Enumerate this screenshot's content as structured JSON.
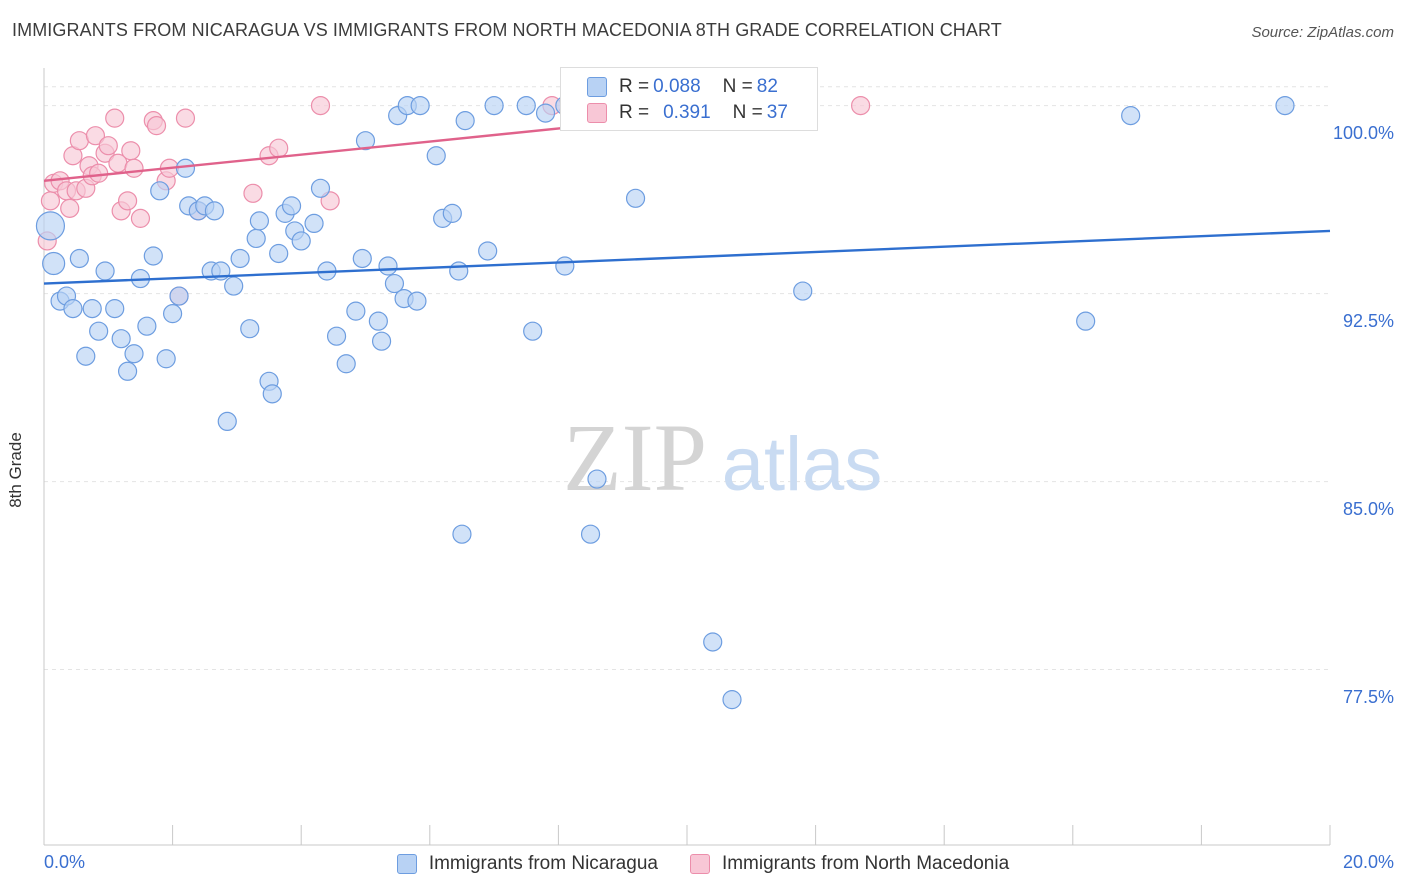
{
  "title": "IMMIGRANTS FROM NICARAGUA VS IMMIGRANTS FROM NORTH MACEDONIA 8TH GRADE CORRELATION CHART",
  "source": "Source: ZipAtlas.com",
  "watermark": {
    "zip": "ZIP",
    "atlas": "atlas"
  },
  "colors": {
    "blue_fill": "#b8d2f4",
    "blue_stroke": "#6d9de0",
    "blue_line": "#2e6fcf",
    "pink_fill": "#f8c7d6",
    "pink_stroke": "#ec8eab",
    "pink_line": "#e0628b",
    "axis_text": "#3a6fd0",
    "grid": "#e4e4e4"
  },
  "legend": {
    "rows": [
      {
        "r_label": "R =",
        "r_value": "0.088",
        "n_label": "N =",
        "n_value": "82"
      },
      {
        "r_label": "R =",
        "r_value": "0.391",
        "n_label": "N =",
        "n_value": "37"
      }
    ]
  },
  "bottom_legend": {
    "series1": "Immigrants from Nicaragua",
    "series2": "Immigrants from North Macedonia"
  },
  "x_axis": {
    "min_label": "0.0%",
    "max_label": "20.0%"
  },
  "y_ticks": [
    "100.0%",
    "92.5%",
    "85.0%",
    "77.5%"
  ],
  "chart_data": {
    "type": "scatter",
    "title": "IMMIGRANTS FROM NICARAGUA VS IMMIGRANTS FROM NORTH MACEDONIA 8TH GRADE CORRELATION CHART",
    "xlabel": "",
    "ylabel": "8th Grade",
    "xlim": [
      0,
      20
    ],
    "ylim": [
      70.5,
      101.5
    ],
    "y_ticks": [
      77.5,
      85.0,
      92.5,
      100.0
    ],
    "grid": true,
    "legend_position": "top-center",
    "series": [
      {
        "name": "Immigrants from Nicaragua",
        "trend": {
          "x": [
            0,
            20
          ],
          "y": [
            92.9,
            95.0
          ]
        },
        "points": [
          [
            0.1,
            95.2
          ],
          [
            0.15,
            93.7
          ],
          [
            0.25,
            92.2
          ],
          [
            0.35,
            92.4
          ],
          [
            0.45,
            91.9
          ],
          [
            0.55,
            93.9
          ],
          [
            0.65,
            90.0
          ],
          [
            0.75,
            91.9
          ],
          [
            0.85,
            91.0
          ],
          [
            0.95,
            93.4
          ],
          [
            1.1,
            91.9
          ],
          [
            1.2,
            90.7
          ],
          [
            1.3,
            89.4
          ],
          [
            1.4,
            90.1
          ],
          [
            1.5,
            93.1
          ],
          [
            1.6,
            91.2
          ],
          [
            1.7,
            94.0
          ],
          [
            1.8,
            96.6
          ],
          [
            1.9,
            89.9
          ],
          [
            2.0,
            91.7
          ],
          [
            2.1,
            92.4
          ],
          [
            2.2,
            97.5
          ],
          [
            2.25,
            96.0
          ],
          [
            2.4,
            95.8
          ],
          [
            2.5,
            96.0
          ],
          [
            2.6,
            93.4
          ],
          [
            2.65,
            95.8
          ],
          [
            2.75,
            93.4
          ],
          [
            2.85,
            87.4
          ],
          [
            2.95,
            92.8
          ],
          [
            3.05,
            93.9
          ],
          [
            3.2,
            91.1
          ],
          [
            3.3,
            94.7
          ],
          [
            3.35,
            95.4
          ],
          [
            3.5,
            89.0
          ],
          [
            3.55,
            88.5
          ],
          [
            3.65,
            94.1
          ],
          [
            3.75,
            95.7
          ],
          [
            3.85,
            96.0
          ],
          [
            3.9,
            95.0
          ],
          [
            4.0,
            94.6
          ],
          [
            4.2,
            95.3
          ],
          [
            4.3,
            96.7
          ],
          [
            4.4,
            93.4
          ],
          [
            4.55,
            90.8
          ],
          [
            4.7,
            89.7
          ],
          [
            4.85,
            91.8
          ],
          [
            4.95,
            93.9
          ],
          [
            5.2,
            91.4
          ],
          [
            5.25,
            90.6
          ],
          [
            5.35,
            93.6
          ],
          [
            5.45,
            92.9
          ],
          [
            5.6,
            92.3
          ],
          [
            5.8,
            92.2
          ],
          [
            5.5,
            99.6
          ],
          [
            5.65,
            100.0
          ],
          [
            5.85,
            100.0
          ],
          [
            6.1,
            98.0
          ],
          [
            6.2,
            95.5
          ],
          [
            6.35,
            95.7
          ],
          [
            6.45,
            93.4
          ],
          [
            6.55,
            99.4
          ],
          [
            6.5,
            82.9
          ],
          [
            6.9,
            94.2
          ],
          [
            7.0,
            100.0
          ],
          [
            7.5,
            100.0
          ],
          [
            7.8,
            99.7
          ],
          [
            7.6,
            91.0
          ],
          [
            8.1,
            100.0
          ],
          [
            8.6,
            85.1
          ],
          [
            8.5,
            82.9
          ],
          [
            8.1,
            93.6
          ],
          [
            9.1,
            100.0
          ],
          [
            9.2,
            96.3
          ],
          [
            10.4,
            78.6
          ],
          [
            10.7,
            76.3
          ],
          [
            11.8,
            92.6
          ],
          [
            16.2,
            91.4
          ],
          [
            16.9,
            99.6
          ],
          [
            19.3,
            100.0
          ],
          [
            8.5,
            100.0
          ],
          [
            5.0,
            98.6
          ]
        ]
      },
      {
        "name": "Immigrants from North Macedonia",
        "trend": {
          "x": [
            0,
            11.5
          ],
          "y": [
            97.0,
            100.0
          ]
        },
        "points": [
          [
            0.05,
            94.6
          ],
          [
            0.1,
            96.2
          ],
          [
            0.15,
            96.9
          ],
          [
            0.25,
            97.0
          ],
          [
            0.35,
            96.6
          ],
          [
            0.4,
            95.9
          ],
          [
            0.45,
            98.0
          ],
          [
            0.5,
            96.6
          ],
          [
            0.55,
            98.6
          ],
          [
            0.65,
            96.7
          ],
          [
            0.7,
            97.6
          ],
          [
            0.75,
            97.2
          ],
          [
            0.8,
            98.8
          ],
          [
            0.85,
            97.3
          ],
          [
            0.95,
            98.1
          ],
          [
            1.0,
            98.4
          ],
          [
            1.1,
            99.5
          ],
          [
            1.15,
            97.7
          ],
          [
            1.2,
            95.8
          ],
          [
            1.3,
            96.2
          ],
          [
            1.35,
            98.2
          ],
          [
            1.4,
            97.5
          ],
          [
            1.5,
            95.5
          ],
          [
            1.7,
            99.4
          ],
          [
            1.75,
            99.2
          ],
          [
            1.9,
            97.0
          ],
          [
            1.95,
            97.5
          ],
          [
            2.1,
            92.4
          ],
          [
            2.2,
            99.5
          ],
          [
            2.4,
            95.8
          ],
          [
            3.25,
            96.5
          ],
          [
            3.5,
            98.0
          ],
          [
            3.65,
            98.3
          ],
          [
            4.3,
            100.0
          ],
          [
            4.45,
            96.2
          ],
          [
            7.9,
            100.0
          ],
          [
            12.7,
            100.0
          ]
        ]
      }
    ]
  }
}
